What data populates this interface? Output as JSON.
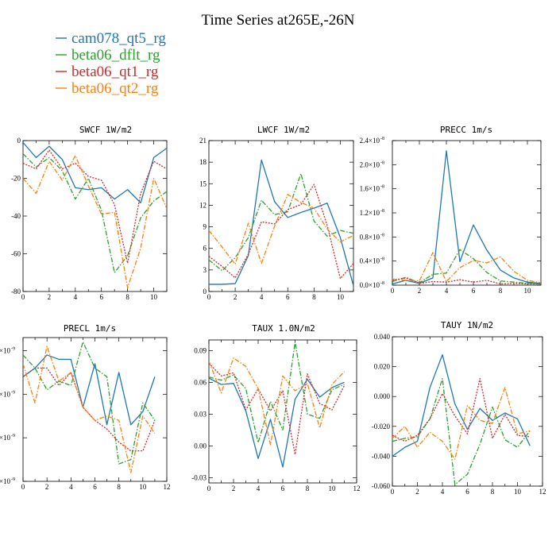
{
  "title": "Time Series at265E,-26N",
  "legend": [
    {
      "name": "cam078_qt5_rg",
      "color": "#1f77b4",
      "dash": "solid"
    },
    {
      "name": "beta06_dflt_rg",
      "color": "#2ca02c",
      "dash": "dashdot"
    },
    {
      "name": "beta06_qt1_rg",
      "color": "#d62728",
      "dash": "dot"
    },
    {
      "name": "beta06_qt2_rg",
      "color": "#ff7f0e",
      "dash": "dashdot"
    }
  ],
  "chart_data": [
    {
      "type": "line",
      "title": "SWCF  1W/m2",
      "xlim": [
        0,
        11
      ],
      "xticks": [
        "0",
        "2",
        "4",
        "6",
        "8",
        "10"
      ],
      "ylim": [
        -80,
        0
      ],
      "yticks": [
        -80,
        -60,
        -40,
        -20,
        0
      ],
      "ytick_labels": [
        "-80",
        "-60",
        "-40",
        "-20",
        "0"
      ],
      "x": [
        0,
        1,
        2,
        3,
        4,
        5,
        6,
        7,
        8,
        9,
        10,
        11
      ],
      "series": [
        {
          "name": "cam078_qt5_rg",
          "values": [
            -1,
            -9,
            -3,
            -10,
            -25,
            -26,
            -25,
            -31,
            -26,
            -33,
            -9,
            -4
          ]
        },
        {
          "name": "beta06_dflt_rg",
          "values": [
            -7,
            -14,
            -9,
            -16,
            -31,
            -20,
            -37,
            -70,
            -61,
            -41,
            -32,
            -27
          ]
        },
        {
          "name": "beta06_qt1_rg",
          "values": [
            -12,
            -15,
            -5,
            -15,
            -12,
            -19,
            -21,
            -34,
            -65,
            -28,
            -11,
            -15
          ]
        },
        {
          "name": "beta06_qt2_rg",
          "values": [
            -20,
            -28,
            -11,
            -21,
            -8,
            -24,
            -39,
            -38,
            -78,
            -57,
            -20,
            -36
          ]
        }
      ]
    },
    {
      "type": "line",
      "title": "LWCF  1W/m2",
      "xlim": [
        0,
        11
      ],
      "xticks": [
        "0",
        "2",
        "4",
        "6",
        "8",
        "10"
      ],
      "ylim": [
        0,
        21
      ],
      "yticks": [
        0,
        3,
        6,
        9,
        12,
        15,
        18,
        21
      ],
      "ytick_labels": [
        "0",
        "3",
        "6",
        "9",
        "12",
        "15",
        "18",
        "21"
      ],
      "x": [
        0,
        1,
        2,
        3,
        4,
        5,
        6,
        7,
        8,
        9,
        10,
        11
      ],
      "series": [
        {
          "name": "cam078_qt5_rg",
          "values": [
            1,
            1,
            1.1,
            5,
            18.3,
            12.5,
            10.3,
            11,
            11.6,
            12.3,
            7.5,
            0.8
          ]
        },
        {
          "name": "beta06_dflt_rg",
          "values": [
            4.4,
            2.9,
            4.7,
            7.5,
            12.7,
            10.7,
            11.1,
            16.4,
            9.8,
            7.7,
            8.5,
            8.1
          ]
        },
        {
          "name": "beta06_qt1_rg",
          "values": [
            4.9,
            3.5,
            1.9,
            5.2,
            9.7,
            9.4,
            11.4,
            12.1,
            14.9,
            9.2,
            1.8,
            3.9
          ]
        },
        {
          "name": "beta06_qt2_rg",
          "values": [
            8.5,
            6.2,
            3.8,
            9.5,
            3.9,
            9.1,
            13.5,
            12.4,
            11.6,
            8.7,
            6.9,
            7.8
          ]
        }
      ]
    },
    {
      "type": "line",
      "title": "PRECC   1m/s",
      "xlim": [
        0,
        11
      ],
      "xticks": [
        "0",
        "2",
        "4",
        "6",
        "8",
        "10"
      ],
      "ylim": [
        0,
        2.4
      ],
      "yticks": [
        0,
        0.4,
        0.8,
        1.2,
        1.6,
        2.0,
        2.4
      ],
      "ytick_labels": [
        "0.0",
        "0.4",
        "0.8",
        "1.2",
        "1.6",
        "2.0",
        "2.4"
      ],
      "ylabel_exponent": "-8",
      "x": [
        0,
        1,
        2,
        3,
        4,
        5,
        6,
        7,
        8,
        9,
        10,
        11
      ],
      "series": [
        {
          "name": "cam078_qt5_rg",
          "values": [
            0.02,
            0.08,
            0.03,
            0.12,
            2.23,
            0.39,
            1.0,
            0.58,
            0.25,
            0.12,
            0.05,
            0.03
          ]
        },
        {
          "name": "beta06_dflt_rg",
          "values": [
            0.06,
            0.13,
            0.04,
            0.18,
            0.2,
            0.59,
            0.44,
            0.21,
            0.07,
            0.05,
            0.03,
            0.02
          ]
        },
        {
          "name": "beta06_qt1_rg",
          "values": [
            0.08,
            0.12,
            0.03,
            0.06,
            0.05,
            0.09,
            0.05,
            0.08,
            0.02,
            0.03,
            0.02,
            0.02
          ]
        },
        {
          "name": "beta06_qt2_rg",
          "values": [
            0.1,
            0.08,
            0.07,
            0.54,
            0.06,
            0.29,
            0.41,
            0.37,
            0.47,
            0.23,
            0.08,
            0.04
          ]
        }
      ]
    },
    {
      "type": "line",
      "title": "PRECL   1m/s",
      "xlim": [
        0,
        12
      ],
      "xticks": [
        "0",
        "2",
        "4",
        "6",
        "8",
        "10",
        "12"
      ],
      "ylim": [
        0,
        3.3
      ],
      "yticks": [
        0,
        1,
        2,
        3
      ],
      "ytick_labels": [
        "",
        "",
        "",
        ""
      ],
      "ylabel_exponent": "-9",
      "x": [
        0,
        1,
        2,
        3,
        4,
        5,
        6,
        7,
        8,
        9,
        10,
        11
      ],
      "series": [
        {
          "name": "cam078_qt5_rg",
          "values": [
            2.4,
            2.6,
            2.9,
            2.8,
            2.8,
            1.7,
            2.7,
            1.3,
            2.5,
            1.3,
            1.6,
            2.4
          ]
        },
        {
          "name": "beta06_dflt_rg",
          "values": [
            2.9,
            2.6,
            2.1,
            2.3,
            2.2,
            3.2,
            2.6,
            2.4,
            0.4,
            0.5,
            1.8,
            1.4
          ]
        },
        {
          "name": "beta06_qt1_rg",
          "values": [
            2.4,
            2.6,
            2.6,
            2.2,
            2.5,
            1.7,
            1.4,
            1.2,
            0.9,
            0.7,
            0.7,
            1.4
          ]
        },
        {
          "name": "beta06_qt2_rg",
          "values": [
            2.7,
            1.8,
            3.1,
            2.3,
            2.5,
            1.7,
            1.4,
            1.5,
            1.4,
            0.2,
            1.5,
            1.1
          ]
        }
      ]
    },
    {
      "type": "line",
      "title": "TAUX  1.0N/m2",
      "xlim": [
        0,
        12
      ],
      "xticks": [
        "0",
        "2",
        "4",
        "6",
        "8",
        "10",
        "12"
      ],
      "ylim": [
        -0.035,
        0.1
      ],
      "yticks": [
        -0.03,
        0.0,
        0.03,
        0.06,
        0.09
      ],
      "ytick_labels": [
        "-0.03",
        "0.00",
        "0.03",
        "0.06",
        "0.09"
      ],
      "x": [
        0,
        1,
        2,
        3,
        4,
        5,
        6,
        7,
        8,
        9,
        10,
        11
      ],
      "series": [
        {
          "name": "cam078_qt5_rg",
          "values": [
            0.064,
            0.058,
            0.059,
            0.033,
            -0.012,
            0.025,
            -0.02,
            0.044,
            0.063,
            0.046,
            0.055,
            0.06
          ]
        },
        {
          "name": "beta06_dflt_rg",
          "values": [
            0.065,
            0.062,
            0.067,
            0.054,
            0.003,
            0.042,
            0.015,
            0.098,
            0.03,
            0.026,
            0.053,
            0.058
          ]
        },
        {
          "name": "beta06_qt1_rg",
          "values": [
            0.078,
            0.066,
            0.069,
            0.034,
            0.054,
            0.033,
            0.052,
            -0.008,
            0.068,
            0.04,
            0.034,
            0.057
          ]
        },
        {
          "name": "beta06_qt2_rg",
          "values": [
            0.08,
            0.05,
            0.083,
            0.075,
            0.054,
            0.001,
            0.066,
            0.052,
            0.059,
            0.017,
            0.058,
            0.07
          ]
        }
      ]
    },
    {
      "type": "line",
      "title": "TAUY   1N/m2",
      "xlim": [
        0,
        12
      ],
      "xticks": [
        "0",
        "2",
        "4",
        "6",
        "8",
        "10",
        "12"
      ],
      "ylim": [
        -0.06,
        0.04
      ],
      "yticks": [
        -0.06,
        -0.04,
        -0.02,
        0.0,
        0.02,
        0.04
      ],
      "ytick_labels": [
        "-0.060",
        "-0.040",
        "-0.020",
        "0.000",
        "0.020",
        "0.040"
      ],
      "x": [
        0,
        1,
        2,
        3,
        4,
        5,
        6,
        7,
        8,
        9,
        10,
        11
      ],
      "series": [
        {
          "name": "cam078_qt5_rg",
          "values": [
            -0.04,
            -0.034,
            -0.03,
            0.006,
            0.028,
            -0.005,
            -0.022,
            -0.008,
            -0.016,
            -0.011,
            -0.015,
            -0.033
          ]
        },
        {
          "name": "beta06_dflt_rg",
          "values": [
            -0.03,
            -0.028,
            -0.027,
            -0.015,
            0.012,
            -0.059,
            -0.052,
            -0.032,
            -0.007,
            -0.029,
            -0.034,
            -0.023
          ]
        },
        {
          "name": "beta06_qt1_rg",
          "values": [
            -0.026,
            -0.03,
            -0.026,
            -0.015,
            0.002,
            -0.013,
            -0.025,
            0.012,
            -0.028,
            -0.012,
            -0.026,
            -0.027
          ]
        },
        {
          "name": "beta06_qt2_rg",
          "values": [
            -0.028,
            -0.02,
            -0.034,
            -0.024,
            -0.03,
            -0.042,
            -0.006,
            -0.016,
            -0.018,
            0.006,
            -0.025,
            -0.023
          ]
        }
      ]
    }
  ]
}
